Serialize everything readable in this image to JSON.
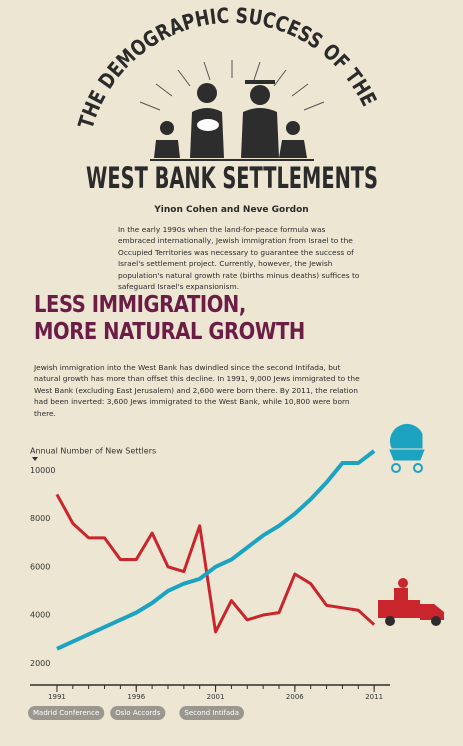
{
  "header": {
    "title_arc": "THE DEMOGRAPHIC SUCCESS OF THE",
    "title_main": "WEST BANK SETTLEMENTS",
    "authors": "Yinon Cohen and Neve Gordon",
    "intro": "In the early 1990s when the land-for-peace formula was embraced internationally, Jewish immigration from Israel to the Occupied Territories was necessary to guarantee the success of Israel's settlement project. Currently, however, the Jewish population's natural growth rate (births minus deaths) suffices to safeguard Israel's expansionism."
  },
  "section": {
    "heading": [
      "LESS IMMIGRATION,",
      "MORE NATURAL GROWTH"
    ],
    "text": "Jewish immigration into the West Bank has dwindled since the second Intifada, but natural growth has more than offset this decline. In 1991, 9,000 Jews immigrated to the West Bank (excluding East Jerusalem) and 2,600 were born there. By 2011, the relation had been inverted: 3,600 Jews immigrated to the West Bank, while 10,800 were born there."
  },
  "chart_data": {
    "type": "line",
    "y_label": "Annual Number of New Settlers",
    "x": [
      1991,
      1992,
      1993,
      1994,
      1995,
      1996,
      1997,
      1998,
      1999,
      2000,
      2001,
      2002,
      2003,
      2004,
      2005,
      2006,
      2007,
      2008,
      2009,
      2010,
      2011
    ],
    "series": [
      {
        "color": "#c8262c",
        "values": [
          9000,
          7800,
          7200,
          7200,
          6300,
          6300,
          7400,
          6000,
          5800,
          7700,
          3300,
          4600,
          3800,
          4000,
          4100,
          5700,
          5300,
          4400,
          4300,
          4200,
          3600
        ]
      },
      {
        "color": "#1ba3c1",
        "values": [
          2600,
          2900,
          3200,
          3500,
          3800,
          4100,
          4500,
          5000,
          5300,
          5500,
          6000,
          6300,
          6800,
          7300,
          7700,
          8200,
          8800,
          9500,
          10300,
          10300,
          10800
        ]
      }
    ],
    "xlim": [
      1989.3,
      2012
    ],
    "xticks": [
      1991,
      1996,
      2001,
      2006,
      2011
    ],
    "ylim": [
      1100,
      10800
    ],
    "yticks": [
      2000,
      4000,
      6000,
      8000,
      10000
    ],
    "grid": false,
    "annotations": [
      "Madrid Conference",
      "Oslo Accords",
      "Second Intifada"
    ]
  }
}
